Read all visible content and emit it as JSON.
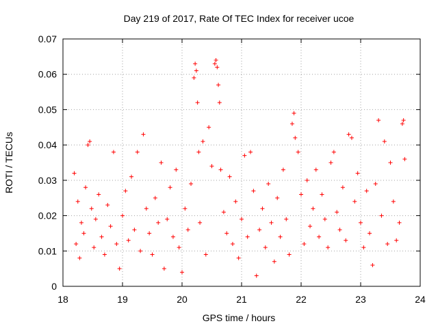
{
  "chart_data": {
    "type": "scatter",
    "title": "Day 219 of 2017, Rate Of TEC Index for receiver ucoe",
    "xlabel": "GPS time / hours",
    "ylabel": "ROTI / TECUs",
    "xlim": [
      18,
      24
    ],
    "ylim": [
      0,
      0.07
    ],
    "xticks": [
      "18",
      "19",
      "20",
      "21",
      "22",
      "23",
      "24"
    ],
    "yticks": [
      "0",
      "0.01",
      "0.02",
      "0.03",
      "0.04",
      "0.05",
      "0.06",
      "0.07"
    ],
    "grid": true,
    "marker": "+",
    "color": "#ff0000",
    "series": [
      {
        "name": "ROTI",
        "x": [
          18.19,
          18.22,
          18.25,
          18.28,
          18.31,
          18.35,
          18.38,
          18.42,
          18.45,
          18.48,
          18.52,
          18.55,
          18.6,
          18.65,
          18.7,
          18.75,
          18.8,
          18.85,
          18.9,
          18.95,
          19.0,
          19.05,
          19.1,
          19.15,
          19.2,
          19.25,
          19.3,
          19.35,
          19.4,
          19.45,
          19.5,
          19.55,
          19.6,
          19.65,
          19.7,
          19.75,
          19.8,
          19.85,
          19.9,
          19.95,
          20.0,
          20.05,
          20.1,
          20.15,
          20.2,
          20.22,
          20.24,
          20.26,
          20.28,
          20.3,
          20.35,
          20.4,
          20.45,
          20.5,
          20.55,
          20.57,
          20.59,
          20.61,
          20.63,
          20.65,
          20.7,
          20.75,
          20.8,
          20.85,
          20.9,
          20.95,
          21.0,
          21.05,
          21.1,
          21.15,
          21.2,
          21.25,
          21.3,
          21.35,
          21.4,
          21.45,
          21.5,
          21.55,
          21.6,
          21.65,
          21.7,
          21.75,
          21.8,
          21.85,
          21.88,
          21.9,
          21.95,
          22.0,
          22.05,
          22.1,
          22.15,
          22.2,
          22.25,
          22.3,
          22.35,
          22.4,
          22.45,
          22.5,
          22.55,
          22.6,
          22.65,
          22.7,
          22.75,
          22.8,
          22.85,
          22.9,
          22.95,
          23.0,
          23.05,
          23.1,
          23.15,
          23.2,
          23.25,
          23.3,
          23.35,
          23.4,
          23.45,
          23.5,
          23.55,
          23.6,
          23.65,
          23.7,
          23.72,
          23.74
        ],
        "y": [
          0.032,
          0.012,
          0.024,
          0.008,
          0.018,
          0.015,
          0.028,
          0.04,
          0.041,
          0.022,
          0.011,
          0.019,
          0.026,
          0.014,
          0.009,
          0.023,
          0.017,
          0.038,
          0.012,
          0.005,
          0.02,
          0.027,
          0.013,
          0.031,
          0.016,
          0.038,
          0.01,
          0.043,
          0.022,
          0.015,
          0.009,
          0.025,
          0.018,
          0.035,
          0.005,
          0.019,
          0.028,
          0.014,
          0.033,
          0.011,
          0.004,
          0.022,
          0.016,
          0.029,
          0.059,
          0.063,
          0.061,
          0.052,
          0.038,
          0.018,
          0.041,
          0.009,
          0.045,
          0.034,
          0.063,
          0.064,
          0.062,
          0.057,
          0.052,
          0.033,
          0.021,
          0.015,
          0.031,
          0.012,
          0.024,
          0.008,
          0.019,
          0.037,
          0.014,
          0.038,
          0.027,
          0.003,
          0.016,
          0.022,
          0.011,
          0.029,
          0.018,
          0.007,
          0.025,
          0.014,
          0.033,
          0.019,
          0.009,
          0.046,
          0.049,
          0.042,
          0.038,
          0.026,
          0.012,
          0.03,
          0.017,
          0.022,
          0.033,
          0.014,
          0.026,
          0.019,
          0.011,
          0.035,
          0.038,
          0.021,
          0.016,
          0.028,
          0.013,
          0.043,
          0.042,
          0.024,
          0.032,
          0.018,
          0.011,
          0.027,
          0.015,
          0.006,
          0.029,
          0.047,
          0.02,
          0.041,
          0.012,
          0.035,
          0.024,
          0.013,
          0.018,
          0.046,
          0.047,
          0.036
        ]
      }
    ]
  }
}
